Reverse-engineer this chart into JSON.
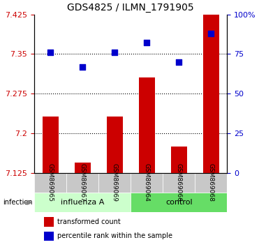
{
  "title": "GDS4825 / ILMN_1791905",
  "samples": [
    "GSM869065",
    "GSM869067",
    "GSM869069",
    "GSM869064",
    "GSM869066",
    "GSM869068"
  ],
  "groups": [
    "influenza A",
    "influenza A",
    "influenza A",
    "control",
    "control",
    "control"
  ],
  "group_labels": [
    "influenza A",
    "control"
  ],
  "group_colors": [
    "#b3ffb3",
    "#00cc44"
  ],
  "bar_values": [
    7.232,
    7.145,
    7.232,
    7.305,
    7.175,
    7.425
  ],
  "scatter_values": [
    76,
    67,
    76,
    82,
    70,
    88
  ],
  "ylim_left": [
    7.125,
    7.425
  ],
  "ylim_right": [
    0,
    100
  ],
  "yticks_left": [
    7.125,
    7.2,
    7.275,
    7.35,
    7.425
  ],
  "ytick_labels_left": [
    "7.125",
    "7.2",
    "7.275",
    "7.35",
    "7.425"
  ],
  "yticks_right": [
    0,
    25,
    50,
    75,
    100
  ],
  "ytick_labels_right": [
    "0",
    "25",
    "50",
    "75",
    "100%"
  ],
  "bar_color": "#cc0000",
  "scatter_color": "#0000cc",
  "bar_bottom": 7.125,
  "infection_label": "infection",
  "legend_bar_label": "transformed count",
  "legend_scatter_label": "percentile rank within the sample",
  "grid_color": "black",
  "background_plot": "#ffffff",
  "background_xtick": "#c8c8c8",
  "background_group_influenza": "#ccffcc",
  "background_group_control": "#66dd66"
}
